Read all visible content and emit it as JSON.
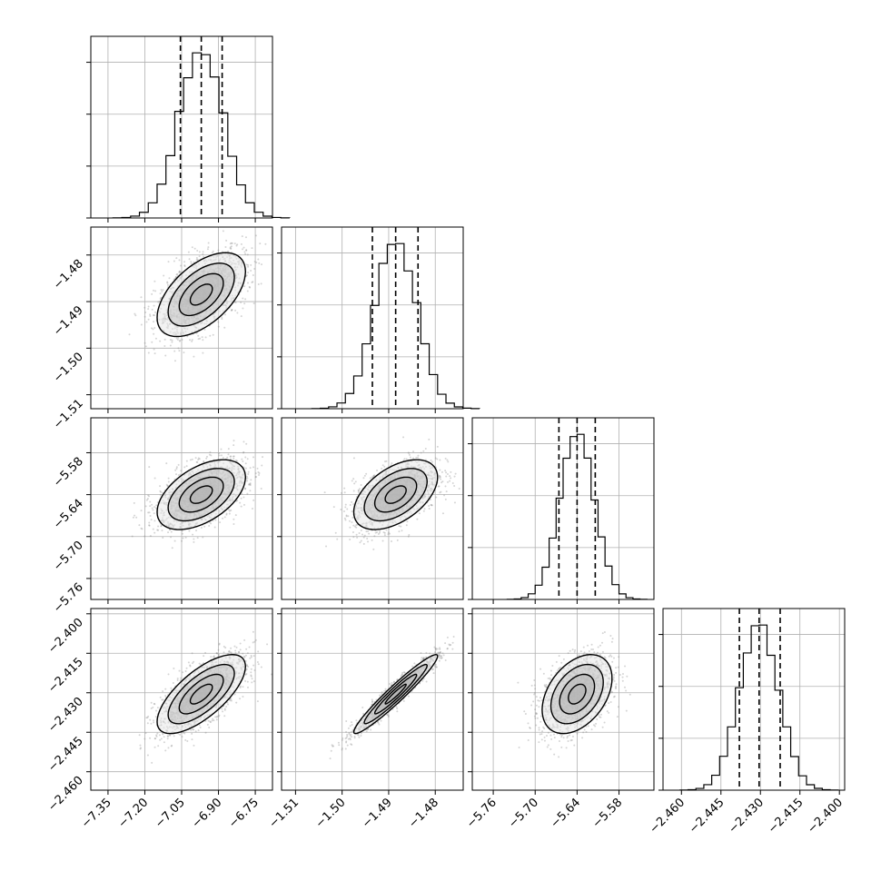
{
  "chart_data": {
    "type": "corner",
    "parameters": [
      {
        "range": [
          -7.42,
          -6.68
        ],
        "ticks": [
          -7.35,
          -7.2,
          -7.05,
          -6.9,
          -6.75
        ],
        "tick_labels": [
          "−7.35",
          "−7.20",
          "−7.05",
          "−6.90",
          "−6.75"
        ],
        "mean": -6.97,
        "sd": 0.09,
        "quantiles": [
          -7.055,
          -6.97,
          -6.885
        ]
      },
      {
        "range": [
          -1.513,
          -1.474
        ],
        "ticks": [
          -1.51,
          -1.5,
          -1.49,
          -1.48
        ],
        "tick_labels": [
          "−1.51",
          "−1.50",
          "−1.49",
          "−1.48"
        ],
        "mean": -1.4885,
        "sd": 0.0045,
        "quantiles": [
          -1.4935,
          -1.4885,
          -1.4837
        ]
      },
      {
        "range": [
          -5.79,
          -5.53
        ],
        "ticks": [
          -5.76,
          -5.7,
          -5.64,
          -5.58
        ],
        "tick_labels": [
          "−5.76",
          "−5.70",
          "−5.64",
          "−5.58"
        ],
        "mean": -5.64,
        "sd": 0.025,
        "quantiles": [
          -5.666,
          -5.64,
          -5.614
        ]
      },
      {
        "range": [
          -2.467,
          -2.398
        ],
        "ticks": [
          -2.46,
          -2.445,
          -2.43,
          -2.415,
          -2.4
        ],
        "tick_labels": [
          "−2.460",
          "−2.445",
          "−2.430",
          "−2.415",
          "−2.400"
        ],
        "mean": -2.4305,
        "sd": 0.0075,
        "quantiles": [
          -2.438,
          -2.4305,
          -2.4225
        ]
      }
    ],
    "histogram_ticks": [
      [
        0.0,
        0.1,
        0.2,
        0.3
      ],
      [
        0.0,
        0.1,
        0.2,
        0.3
      ],
      [
        0.0,
        0.1,
        0.2,
        0.3
      ],
      [
        0.0,
        0.1,
        0.2,
        0.3
      ]
    ],
    "correlations": {
      "1_0": 0.55,
      "2_0": 0.5,
      "2_1": 0.5,
      "3_0": 0.7,
      "3_1": 0.96,
      "3_2": 0.4
    },
    "histogram_bins": 20,
    "contour_levels": [
      0.5,
      1.0,
      1.5,
      2.0
    ],
    "grid": true,
    "n_samples": 1500
  }
}
